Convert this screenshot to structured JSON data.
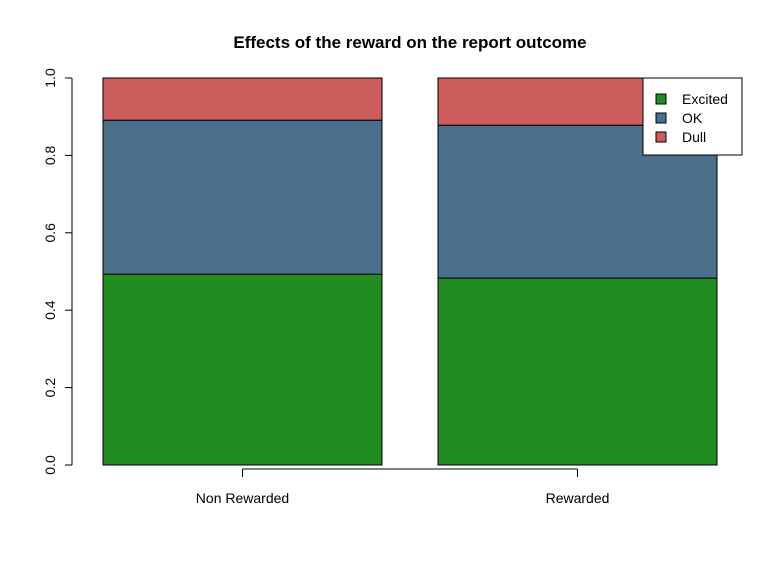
{
  "chart_data": {
    "type": "bar",
    "stacked": true,
    "title": "Effects of the reward on the report outcome",
    "xlabel": "",
    "ylabel": "",
    "categories": [
      "Non Rewarded",
      "Rewarded"
    ],
    "series": [
      {
        "name": "Excited",
        "color": "#228B22",
        "values": [
          0.493,
          0.483
        ]
      },
      {
        "name": "OK",
        "color": "#4A708B",
        "values": [
          0.398,
          0.395
        ]
      },
      {
        "name": "Dull",
        "color": "#CD5C5C",
        "values": [
          0.109,
          0.122
        ]
      }
    ],
    "ylim": [
      0,
      1.0
    ],
    "yticks": [
      "0.0",
      "0.2",
      "0.4",
      "0.6",
      "0.8",
      "1.0"
    ],
    "legend_position": "top-right",
    "grid": false
  }
}
